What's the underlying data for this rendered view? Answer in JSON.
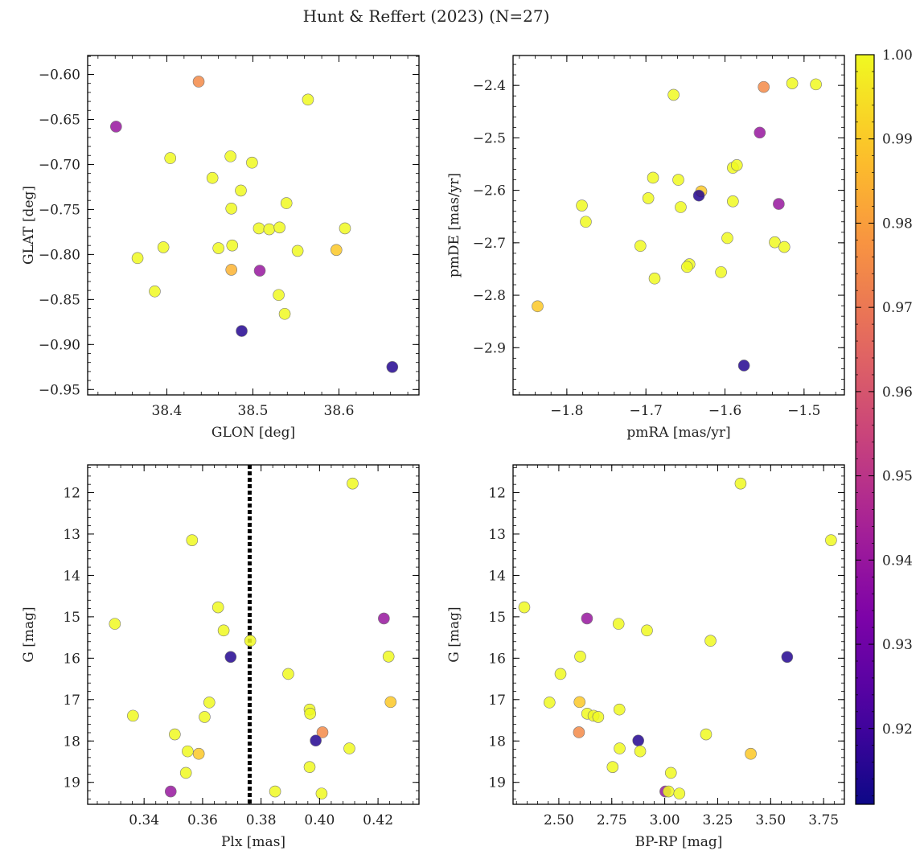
{
  "suptitle": "Hunt & Reffert (2023) (N=27)",
  "colorbar": {
    "cmap": "plasma",
    "min": 0.911,
    "max": 1.0,
    "ticks": [
      "0.92",
      "0.93",
      "0.94",
      "0.95",
      "0.96",
      "0.97",
      "0.98",
      "0.99",
      "1.00"
    ]
  },
  "chart_data": [
    {
      "id": "tl",
      "type": "scatter",
      "xlabel": "GLON [deg]",
      "ylabel": "GLAT [deg]",
      "xlim": [
        38.308,
        38.693
      ],
      "ylim": [
        -0.956,
        -0.579
      ],
      "xticks": [
        38.4,
        38.5,
        38.6
      ],
      "xtick_labels": [
        "38.4",
        "38.5",
        "38.6"
      ],
      "yticks": [
        -0.6,
        -0.65,
        -0.7,
        -0.75,
        -0.8,
        -0.85,
        -0.9,
        -0.95
      ],
      "ytick_labels": [
        "−0.60",
        "−0.65",
        "−0.70",
        "−0.75",
        "−0.80",
        "−0.85",
        "−0.90",
        "−0.95"
      ],
      "invert_y": false,
      "points": [
        {
          "x": 38.437,
          "y": -0.608,
          "c": 0.975
        },
        {
          "x": 38.341,
          "y": -0.658,
          "c": 0.94
        },
        {
          "x": 38.564,
          "y": -0.628,
          "c": 1.0
        },
        {
          "x": 38.404,
          "y": -0.693,
          "c": 1.0
        },
        {
          "x": 38.474,
          "y": -0.691,
          "c": 1.0
        },
        {
          "x": 38.499,
          "y": -0.698,
          "c": 1.0
        },
        {
          "x": 38.453,
          "y": -0.715,
          "c": 1.0
        },
        {
          "x": 38.486,
          "y": -0.729,
          "c": 1.0
        },
        {
          "x": 38.539,
          "y": -0.743,
          "c": 1.0
        },
        {
          "x": 38.475,
          "y": -0.749,
          "c": 1.0
        },
        {
          "x": 38.507,
          "y": -0.771,
          "c": 1.0
        },
        {
          "x": 38.519,
          "y": -0.772,
          "c": 1.0
        },
        {
          "x": 38.531,
          "y": -0.77,
          "c": 1.0
        },
        {
          "x": 38.607,
          "y": -0.771,
          "c": 1.0
        },
        {
          "x": 38.366,
          "y": -0.804,
          "c": 1.0
        },
        {
          "x": 38.396,
          "y": -0.792,
          "c": 1.0
        },
        {
          "x": 38.46,
          "y": -0.793,
          "c": 1.0
        },
        {
          "x": 38.476,
          "y": -0.79,
          "c": 1.0
        },
        {
          "x": 38.552,
          "y": -0.796,
          "c": 1.0
        },
        {
          "x": 38.597,
          "y": -0.795,
          "c": 0.99
        },
        {
          "x": 38.475,
          "y": -0.817,
          "c": 0.985
        },
        {
          "x": 38.508,
          "y": -0.818,
          "c": 0.94
        },
        {
          "x": 38.386,
          "y": -0.841,
          "c": 1.0
        },
        {
          "x": 38.53,
          "y": -0.845,
          "c": 1.0
        },
        {
          "x": 38.537,
          "y": -0.866,
          "c": 1.0
        },
        {
          "x": 38.487,
          "y": -0.885,
          "c": 0.915
        },
        {
          "x": 38.662,
          "y": -0.925,
          "c": 0.915
        }
      ]
    },
    {
      "id": "tr",
      "type": "scatter",
      "xlabel": "pmRA [mas/yr]",
      "ylabel": "pmDE [mas/yr]",
      "xlim": [
        -1.868,
        -1.449
      ],
      "ylim": [
        -2.99,
        -2.343
      ],
      "xticks": [
        -1.8,
        -1.7,
        -1.6,
        -1.5
      ],
      "xtick_labels": [
        "−1.8",
        "−1.7",
        "−1.6",
        "−1.5"
      ],
      "yticks": [
        -2.4,
        -2.5,
        -2.6,
        -2.7,
        -2.8,
        -2.9
      ],
      "ytick_labels": [
        "−2.4",
        "−2.5",
        "−2.6",
        "−2.7",
        "−2.8",
        "−2.9"
      ],
      "invert_y": false,
      "points": [
        {
          "x": -1.551,
          "y": -2.403,
          "c": 0.975
        },
        {
          "x": -1.515,
          "y": -2.396,
          "c": 1.0
        },
        {
          "x": -1.485,
          "y": -2.398,
          "c": 1.0
        },
        {
          "x": -1.665,
          "y": -2.418,
          "c": 1.0
        },
        {
          "x": -1.556,
          "y": -2.49,
          "c": 0.94
        },
        {
          "x": -1.691,
          "y": -2.576,
          "c": 1.0
        },
        {
          "x": -1.659,
          "y": -2.58,
          "c": 1.0
        },
        {
          "x": -1.59,
          "y": -2.557,
          "c": 1.0
        },
        {
          "x": -1.585,
          "y": -2.552,
          "c": 1.0
        },
        {
          "x": -1.63,
          "y": -2.602,
          "c": 0.99
        },
        {
          "x": -1.633,
          "y": -2.61,
          "c": 0.915
        },
        {
          "x": -1.697,
          "y": -2.615,
          "c": 1.0
        },
        {
          "x": -1.59,
          "y": -2.621,
          "c": 1.0
        },
        {
          "x": -1.532,
          "y": -2.626,
          "c": 0.94
        },
        {
          "x": -1.656,
          "y": -2.632,
          "c": 1.0
        },
        {
          "x": -1.781,
          "y": -2.629,
          "c": 1.0
        },
        {
          "x": -1.776,
          "y": -2.66,
          "c": 1.0
        },
        {
          "x": -1.597,
          "y": -2.691,
          "c": 1.0
        },
        {
          "x": -1.537,
          "y": -2.699,
          "c": 1.0
        },
        {
          "x": -1.525,
          "y": -2.708,
          "c": 1.0
        },
        {
          "x": -1.707,
          "y": -2.706,
          "c": 1.0
        },
        {
          "x": -1.645,
          "y": -2.741,
          "c": 1.0
        },
        {
          "x": -1.648,
          "y": -2.746,
          "c": 1.0
        },
        {
          "x": -1.605,
          "y": -2.756,
          "c": 1.0
        },
        {
          "x": -1.689,
          "y": -2.768,
          "c": 1.0
        },
        {
          "x": -1.837,
          "y": -2.821,
          "c": 0.99
        },
        {
          "x": -1.576,
          "y": -2.934,
          "c": 0.915
        }
      ]
    },
    {
      "id": "bl",
      "type": "scatter",
      "xlabel": "Plx [mas]",
      "ylabel": "G [mag]",
      "xlim": [
        0.3207,
        0.434
      ],
      "ylim": [
        19.53,
        11.33
      ],
      "xticks": [
        0.34,
        0.36,
        0.38,
        0.4,
        0.42
      ],
      "xtick_labels": [
        "0.34",
        "0.36",
        "0.38",
        "0.40",
        "0.42"
      ],
      "yticks": [
        12,
        13,
        14,
        15,
        16,
        17,
        18,
        19
      ],
      "ytick_labels": [
        "12",
        "13",
        "14",
        "15",
        "16",
        "17",
        "18",
        "19"
      ],
      "invert_y": true,
      "vline": 0.3761,
      "points": [
        {
          "x": 0.4113,
          "y": 11.78,
          "c": 1.0
        },
        {
          "x": 0.3564,
          "y": 13.15,
          "c": 1.0
        },
        {
          "x": 0.3653,
          "y": 14.77,
          "c": 1.0
        },
        {
          "x": 0.33,
          "y": 15.17,
          "c": 1.0
        },
        {
          "x": 0.422,
          "y": 15.04,
          "c": 0.94
        },
        {
          "x": 0.3672,
          "y": 15.33,
          "c": 1.0
        },
        {
          "x": 0.3763,
          "y": 15.58,
          "c": 1.0
        },
        {
          "x": 0.3696,
          "y": 15.97,
          "c": 0.915
        },
        {
          "x": 0.4236,
          "y": 15.96,
          "c": 1.0
        },
        {
          "x": 0.3893,
          "y": 16.38,
          "c": 1.0
        },
        {
          "x": 0.3623,
          "y": 17.07,
          "c": 1.0
        },
        {
          "x": 0.4243,
          "y": 17.06,
          "c": 0.99
        },
        {
          "x": 0.3966,
          "y": 17.24,
          "c": 1.0
        },
        {
          "x": 0.3968,
          "y": 17.34,
          "c": 1.0
        },
        {
          "x": 0.3362,
          "y": 17.39,
          "c": 1.0
        },
        {
          "x": 0.3607,
          "y": 17.42,
          "c": 1.0
        },
        {
          "x": 0.401,
          "y": 17.79,
          "c": 0.975
        },
        {
          "x": 0.3505,
          "y": 17.84,
          "c": 1.0
        },
        {
          "x": 0.3987,
          "y": 17.99,
          "c": 0.915
        },
        {
          "x": 0.4102,
          "y": 18.18,
          "c": 1.0
        },
        {
          "x": 0.3549,
          "y": 18.25,
          "c": 1.0
        },
        {
          "x": 0.3587,
          "y": 18.31,
          "c": 0.99
        },
        {
          "x": 0.3966,
          "y": 18.63,
          "c": 1.0
        },
        {
          "x": 0.3543,
          "y": 18.77,
          "c": 1.0
        },
        {
          "x": 0.3491,
          "y": 19.22,
          "c": 0.94
        },
        {
          "x": 0.3848,
          "y": 19.22,
          "c": 1.0
        },
        {
          "x": 0.4007,
          "y": 19.27,
          "c": 1.0
        }
      ]
    },
    {
      "id": "br",
      "type": "scatter",
      "xlabel": "BP-RP [mag]",
      "ylabel": "G [mag]",
      "xlim": [
        2.284,
        3.848
      ],
      "ylim": [
        19.53,
        11.33
      ],
      "xticks": [
        2.5,
        2.75,
        3.0,
        3.25,
        3.5,
        3.75
      ],
      "xtick_labels": [
        "2.50",
        "2.75",
        "3.00",
        "3.25",
        "3.50",
        "3.75"
      ],
      "yticks": [
        12,
        13,
        14,
        15,
        16,
        17,
        18,
        19
      ],
      "ytick_labels": [
        "12",
        "13",
        "14",
        "15",
        "16",
        "17",
        "18",
        "19"
      ],
      "invert_y": true,
      "points": [
        {
          "x": 3.358,
          "y": 11.78,
          "c": 1.0
        },
        {
          "x": 3.785,
          "y": 13.15,
          "c": 1.0
        },
        {
          "x": 2.337,
          "y": 14.77,
          "c": 1.0
        },
        {
          "x": 2.633,
          "y": 15.04,
          "c": 0.94
        },
        {
          "x": 2.782,
          "y": 15.17,
          "c": 1.0
        },
        {
          "x": 2.916,
          "y": 15.33,
          "c": 1.0
        },
        {
          "x": 3.216,
          "y": 15.58,
          "c": 1.0
        },
        {
          "x": 3.578,
          "y": 15.97,
          "c": 0.915
        },
        {
          "x": 2.601,
          "y": 15.96,
          "c": 1.0
        },
        {
          "x": 2.508,
          "y": 16.38,
          "c": 1.0
        },
        {
          "x": 2.456,
          "y": 17.07,
          "c": 1.0
        },
        {
          "x": 2.598,
          "y": 17.06,
          "c": 0.99
        },
        {
          "x": 2.786,
          "y": 17.24,
          "c": 1.0
        },
        {
          "x": 2.634,
          "y": 17.34,
          "c": 1.0
        },
        {
          "x": 2.664,
          "y": 17.39,
          "c": 1.0
        },
        {
          "x": 2.686,
          "y": 17.42,
          "c": 1.0
        },
        {
          "x": 2.595,
          "y": 17.79,
          "c": 0.975
        },
        {
          "x": 3.195,
          "y": 17.84,
          "c": 1.0
        },
        {
          "x": 2.875,
          "y": 17.99,
          "c": 0.915
        },
        {
          "x": 2.787,
          "y": 18.18,
          "c": 1.0
        },
        {
          "x": 2.884,
          "y": 18.25,
          "c": 1.0
        },
        {
          "x": 3.406,
          "y": 18.31,
          "c": 0.99
        },
        {
          "x": 2.754,
          "y": 18.63,
          "c": 1.0
        },
        {
          "x": 3.029,
          "y": 18.77,
          "c": 1.0
        },
        {
          "x": 3.003,
          "y": 19.22,
          "c": 0.94
        },
        {
          "x": 3.018,
          "y": 19.22,
          "c": 1.0
        },
        {
          "x": 3.069,
          "y": 19.27,
          "c": 1.0
        }
      ]
    }
  ]
}
